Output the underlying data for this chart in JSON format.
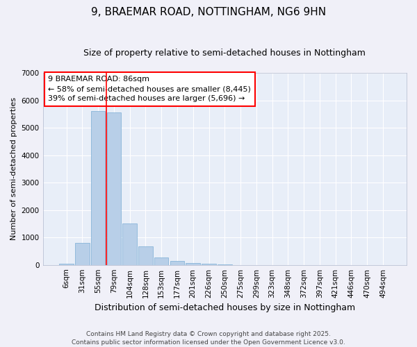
{
  "title": "9, BRAEMAR ROAD, NOTTINGHAM, NG6 9HN",
  "subtitle": "Size of property relative to semi-detached houses in Nottingham",
  "xlabel": "Distribution of semi-detached houses by size in Nottingham",
  "ylabel": "Number of semi-detached properties",
  "categories": [
    "6sqm",
    "31sqm",
    "55sqm",
    "79sqm",
    "104sqm",
    "128sqm",
    "153sqm",
    "177sqm",
    "201sqm",
    "226sqm",
    "250sqm",
    "275sqm",
    "299sqm",
    "323sqm",
    "348sqm",
    "372sqm",
    "397sqm",
    "421sqm",
    "446sqm",
    "470sqm",
    "494sqm"
  ],
  "values": [
    30,
    800,
    5600,
    5550,
    1500,
    670,
    280,
    140,
    70,
    50,
    20,
    0,
    0,
    0,
    0,
    0,
    0,
    0,
    0,
    0,
    0
  ],
  "bar_color": "#b8cfe8",
  "bar_edgecolor": "#7aadd4",
  "background_color": "#e8eef8",
  "grid_color": "#ffffff",
  "red_line_x": 2.5,
  "annotation_title": "9 BRAEMAR ROAD: 86sqm",
  "annotation_line1": "← 58% of semi-detached houses are smaller (8,445)",
  "annotation_line2": "39% of semi-detached houses are larger (5,696) →",
  "footer_line1": "Contains HM Land Registry data © Crown copyright and database right 2025.",
  "footer_line2": "Contains public sector information licensed under the Open Government Licence v3.0.",
  "ylim_max": 7000,
  "yticks": [
    0,
    1000,
    2000,
    3000,
    4000,
    5000,
    6000,
    7000
  ],
  "title_fontsize": 11,
  "subtitle_fontsize": 9,
  "ylabel_fontsize": 8,
  "xlabel_fontsize": 9,
  "tick_fontsize": 7.5,
  "annotation_fontsize": 8,
  "footer_fontsize": 6.5
}
